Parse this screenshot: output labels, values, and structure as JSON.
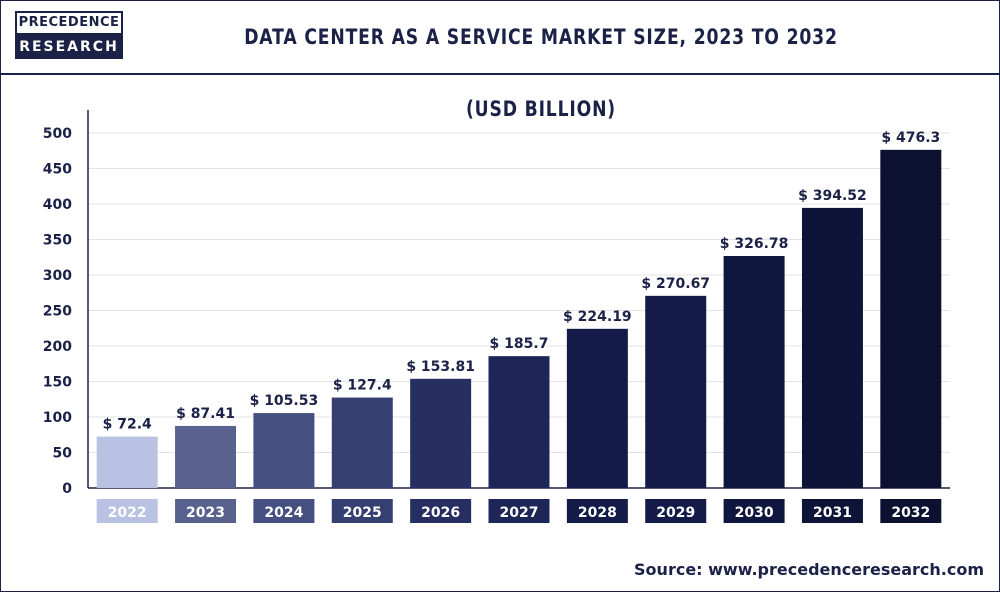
{
  "logo": {
    "line1": "PRECEDENCE",
    "line2": "RESEARCH"
  },
  "header": {
    "title": "DATA CENTER AS A SERVICE MARKET SIZE, 2023 TO 2032 (USD BILLION)"
  },
  "source": "Source: www.precedenceresearch.com",
  "chart_data": {
    "type": "bar",
    "title": "DATA CENTER AS A SERVICE MARKET SIZE, 2023 TO 2032 (USD BILLION)",
    "xlabel": "",
    "ylabel": "",
    "categories": [
      "2022",
      "2023",
      "2024",
      "2025",
      "2026",
      "2027",
      "2028",
      "2029",
      "2030",
      "2031",
      "2032"
    ],
    "values": [
      72.4,
      87.41,
      105.53,
      127.4,
      153.81,
      185.7,
      224.19,
      270.67,
      326.78,
      394.52,
      476.3
    ],
    "data_labels": [
      "$ 72.4",
      "$ 87.41",
      "$ 105.53",
      "$ 127.4",
      "$ 153.81",
      "$ 185.7",
      "$ 224.19",
      "$ 270.67",
      "$ 326.78",
      "$ 394.52",
      "$ 476.3"
    ],
    "ylim": [
      0,
      500
    ],
    "yticks": [
      0,
      50,
      100,
      150,
      200,
      250,
      300,
      350,
      400,
      450,
      500
    ],
    "grid": true,
    "legend": "none",
    "colors": [
      "#b9c2e2",
      "#59628f",
      "#454f80",
      "#363f72",
      "#272f62",
      "#1d2657",
      "#141b48",
      "#141b48",
      "#10173f",
      "#0e1438",
      "#0c1132"
    ]
  }
}
